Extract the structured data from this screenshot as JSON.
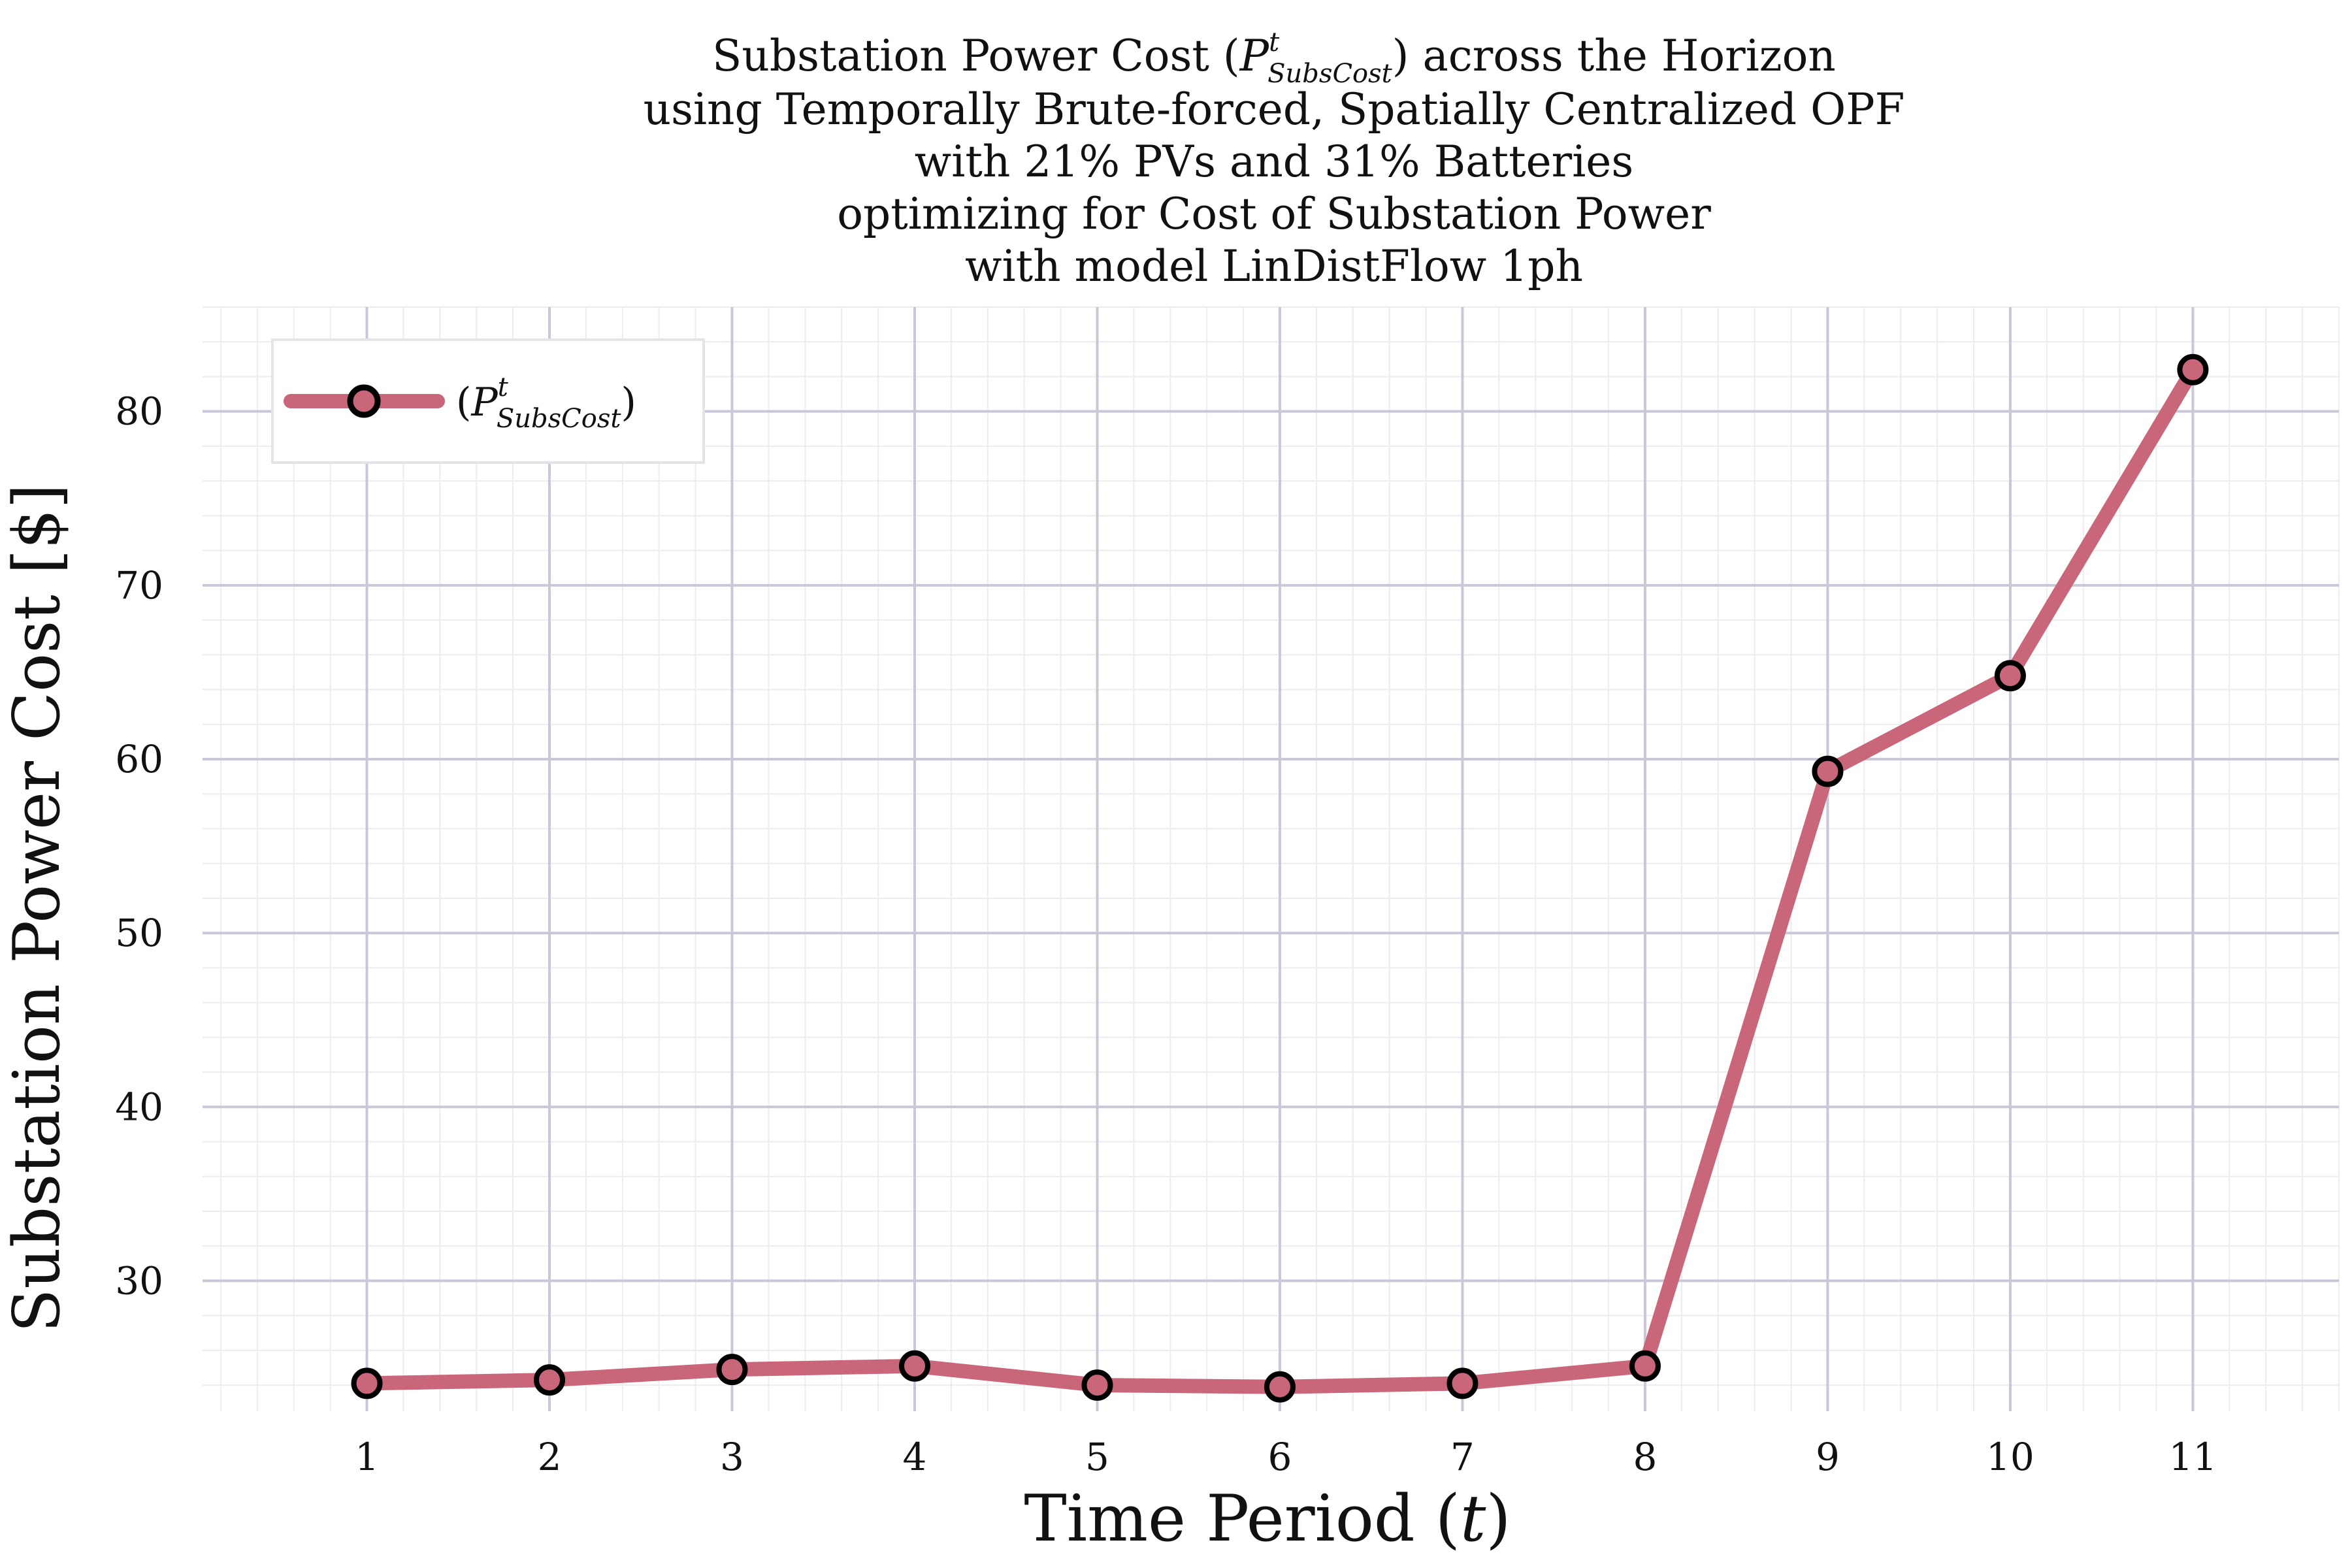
{
  "chart_data": {
    "type": "line",
    "title_lines": [
      "Substation Power Cost (",
      "using Temporally Brute-forced, Spatially Centralized OPF",
      "with 21% PVs and 31% Batteries",
      "optimizing for Cost of Substation Power",
      "with model LinDistFlow 1ph"
    ],
    "title_first_line_suffix": ") across the Horizon",
    "symbol": {
      "base": "P",
      "superscript": "t",
      "subscript": "SubsCost"
    },
    "xlabel": {
      "text": "Time Period (",
      "var": "t",
      "close": ")"
    },
    "ylabel": "Substation Power Cost [$]",
    "x": [
      1,
      2,
      3,
      4,
      5,
      6,
      7,
      8,
      9,
      10,
      11
    ],
    "series": [
      {
        "values": [
          24.1,
          24.3,
          24.9,
          25.1,
          24.0,
          23.9,
          24.1,
          25.1,
          59.3,
          64.8,
          82.4
        ],
        "color": "#c9667a",
        "marker_edge": "#000000"
      }
    ],
    "xticks": [
      "1",
      "2",
      "3",
      "4",
      "5",
      "6",
      "7",
      "8",
      "9",
      "10",
      "11"
    ],
    "yticks": [
      "30",
      "40",
      "50",
      "60",
      "70",
      "80"
    ],
    "xlim": [
      0.1,
      11.8
    ],
    "ylim": [
      22.5,
      86
    ],
    "grid": true,
    "minor_grid": true,
    "legend_position": "top-left",
    "legend_label_open": "(",
    "legend_label_close": ")",
    "grid_color": "#c8c8d8",
    "minor_grid_color": "#ececf1"
  }
}
